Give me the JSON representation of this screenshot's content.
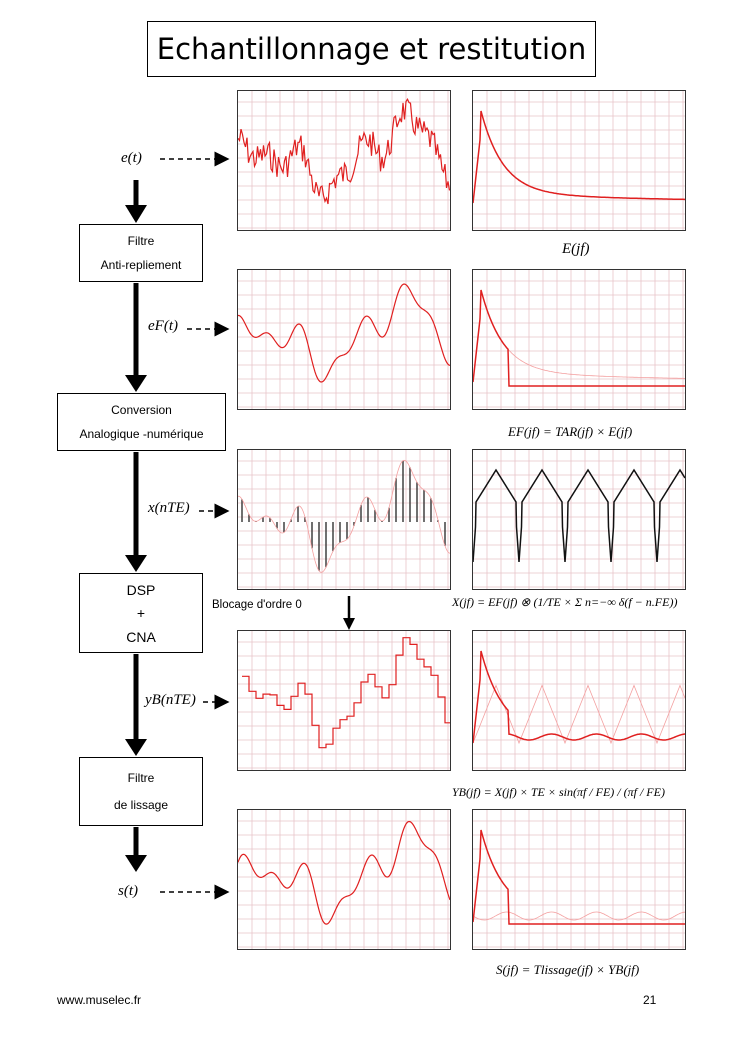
{
  "title": "Echantillonnage et restitution",
  "blocks": {
    "filtre_anti": [
      "Filtre",
      "Anti-repliement"
    ],
    "conversion": [
      "Conversion",
      "Analogique -numérique"
    ],
    "dsp": [
      "DSP",
      "+",
      "CNA"
    ],
    "lissage": [
      "Filtre",
      "de lissage"
    ]
  },
  "signals": {
    "e": "e(t)",
    "ef": "eF(t)",
    "x": "x(nTE)",
    "yb": "yB(nTE)",
    "s": "s(t)"
  },
  "formulas": {
    "E": "E(jf)",
    "EF": "EF(jf) = TAR(jf) × E(jf)",
    "X": "X(jf) = EF(jf) ⊗ (1/TE × Σ n=−∞ δ(f − n.FE))",
    "YB": "YB(jf) = X(jf) × TE × sin(πf / FE) / (πf / FE)",
    "S": "S(jf) = Tlissage(jf) × YB(jf)"
  },
  "blocage_label": "Blocage d'ordre 0",
  "footer": {
    "website": "www.muselec.fr",
    "page": "21"
  },
  "colors": {
    "signal": "#e02020",
    "faint": "#f4a0a0",
    "grid": "#e8c4c8",
    "sampled": "#333333"
  }
}
